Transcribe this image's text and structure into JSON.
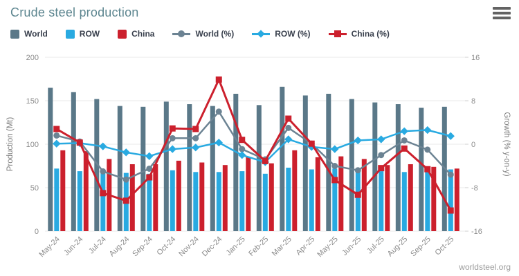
{
  "header": {
    "title": "Crude steel production",
    "menu_icon": "hamburger-icon"
  },
  "watermark": "worldsteel.org",
  "colors": {
    "title": "#5d8690",
    "world_bar": "#5a7888",
    "row_bar": "#29aae1",
    "china_bar": "#cc202d",
    "world_line": "#6c8393",
    "row_line": "#29aae1",
    "china_line": "#cc202d",
    "gridline": "#e9e9e9",
    "axis_text": "#8b8b8b",
    "legend_text": "#39404d"
  },
  "chart_data": {
    "type": "bar",
    "subtype": "bar-line-combo",
    "title": "Crude steel production",
    "categories": [
      "May-24",
      "Jun-24",
      "Jul-24",
      "Aug-24",
      "Sep-24",
      "Oct-24",
      "Nov-24",
      "Dec-24",
      "Jan-25",
      "Feb-25",
      "Mar-25",
      "Apr-25",
      "May-25",
      "Jun-25",
      "Jul-25",
      "Aug-25",
      "Sep-25",
      "Oct-25"
    ],
    "bar_series": [
      {
        "name": "World",
        "color": "#5a7888",
        "axis": "left",
        "values": [
          165,
          160,
          152,
          144,
          143,
          149,
          146,
          144,
          158,
          145,
          166,
          156,
          158,
          152,
          148,
          146,
          142,
          143
        ]
      },
      {
        "name": "ROW",
        "color": "#29aae1",
        "axis": "left",
        "values": [
          72,
          69,
          68,
          67,
          66,
          70,
          68,
          68,
          69,
          66,
          73,
          71,
          72,
          69,
          69,
          68,
          69,
          71
        ]
      },
      {
        "name": "China",
        "color": "#cc202d",
        "axis": "left",
        "values": [
          93,
          92,
          83,
          77,
          77,
          81,
          79,
          76,
          85,
          78,
          93,
          85,
          86,
          83,
          76,
          77,
          74,
          72
        ]
      }
    ],
    "line_series": [
      {
        "name": "World (%)",
        "color": "#6c8393",
        "marker": "circle",
        "axis": "right",
        "values": [
          1.6,
          0.5,
          -5.0,
          -6.5,
          -4.5,
          1.1,
          1.1,
          6.0,
          -0.9,
          -2.8,
          3.0,
          0.1,
          -4.0,
          -4.8,
          -2.0,
          0.7,
          -1.0,
          -5.6
        ]
      },
      {
        "name": "ROW (%)",
        "color": "#29aae1",
        "marker": "diamond",
        "axis": "right",
        "values": [
          0.1,
          0.2,
          -0.4,
          -1.5,
          -2.2,
          -0.9,
          -0.6,
          0.3,
          -2.0,
          -3.3,
          0.9,
          -0.5,
          -0.9,
          0.7,
          0.9,
          2.4,
          2.6,
          1.5
        ]
      },
      {
        "name": "China (%)",
        "color": "#cc202d",
        "marker": "square",
        "axis": "right",
        "values": [
          2.8,
          0.3,
          -9.0,
          -10.4,
          -6.1,
          2.9,
          2.8,
          11.9,
          0.8,
          -3.1,
          4.7,
          0.1,
          -6.6,
          -9.3,
          -4.4,
          -0.8,
          -4.6,
          -12.2
        ]
      }
    ],
    "left_axis": {
      "label": "Production (Mt)",
      "ticks": [
        0,
        50,
        100,
        150,
        200
      ],
      "min": 0,
      "max": 200
    },
    "right_axis": {
      "label": "Growth (% y-on-y)",
      "ticks": [
        -16,
        -8,
        0,
        8,
        16
      ],
      "min": -16,
      "max": 16
    },
    "grid": true,
    "legend_position": "top"
  }
}
